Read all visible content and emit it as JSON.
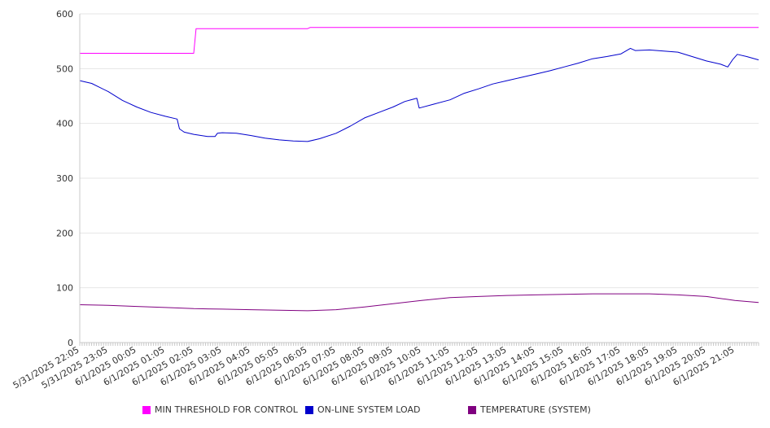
{
  "chart_data": {
    "type": "line",
    "title": "",
    "xlabel": "",
    "ylabel": "",
    "ylim": [
      0,
      600
    ],
    "yticks": [
      0,
      100,
      200,
      300,
      400,
      500,
      600
    ],
    "grid": true,
    "legend_position": "bottom",
    "x_start": "5/31/2025 22:05",
    "x_end": "6/1/2025 21:55",
    "x_tick_labels": [
      "5/31/2025 22:05",
      "5/31/2025 23:05",
      "6/1/2025 00:05",
      "6/1/2025 01:05",
      "6/1/2025 02:05",
      "6/1/2025 03:05",
      "6/1/2025 04:05",
      "6/1/2025 05:05",
      "6/1/2025 06:05",
      "6/1/2025 07:05",
      "6/1/2025 08:05",
      "6/1/2025 09:05",
      "6/1/2025 10:05",
      "6/1/2025 11:05",
      "6/1/2025 12:05",
      "6/1/2025 13:05",
      "6/1/2025 14:05",
      "6/1/2025 15:05",
      "6/1/2025 16:05",
      "6/1/2025 17:05",
      "6/1/2025 18:05",
      "6/1/2025 19:05",
      "6/1/2025 20:05",
      "6/1/2025 21:05"
    ],
    "series": [
      {
        "name": "MIN THRESHOLD FOR CONTROL",
        "color": "#ff00ff",
        "points": [
          [
            "5/31/2025 22:05",
            528
          ],
          [
            "6/1/2025 02:05",
            528
          ],
          [
            "6/1/2025 02:10",
            573
          ],
          [
            "6/1/2025 06:05",
            573
          ],
          [
            "6/1/2025 06:10",
            575
          ],
          [
            "6/1/2025 21:55",
            575
          ]
        ]
      },
      {
        "name": "ON-LINE SYSTEM LOAD",
        "color": "#0000cc",
        "points": [
          [
            "5/31/2025 22:05",
            478
          ],
          [
            "5/31/2025 22:30",
            473
          ],
          [
            "5/31/2025 23:05",
            458
          ],
          [
            "5/31/2025 23:35",
            442
          ],
          [
            "6/1/2025 00:05",
            430
          ],
          [
            "6/1/2025 00:35",
            420
          ],
          [
            "6/1/2025 01:05",
            413
          ],
          [
            "6/1/2025 01:30",
            408
          ],
          [
            "6/1/2025 01:35",
            390
          ],
          [
            "6/1/2025 01:45",
            384
          ],
          [
            "6/1/2025 02:05",
            380
          ],
          [
            "6/1/2025 02:35",
            376
          ],
          [
            "6/1/2025 02:50",
            376
          ],
          [
            "6/1/2025 02:55",
            382
          ],
          [
            "6/1/2025 03:05",
            383
          ],
          [
            "6/1/2025 03:35",
            382
          ],
          [
            "6/1/2025 04:05",
            378
          ],
          [
            "6/1/2025 04:35",
            373
          ],
          [
            "6/1/2025 05:05",
            370
          ],
          [
            "6/1/2025 05:35",
            368
          ],
          [
            "6/1/2025 06:05",
            367
          ],
          [
            "6/1/2025 06:30",
            372
          ],
          [
            "6/1/2025 07:05",
            382
          ],
          [
            "6/1/2025 07:35",
            395
          ],
          [
            "6/1/2025 08:05",
            410
          ],
          [
            "6/1/2025 08:35",
            420
          ],
          [
            "6/1/2025 09:05",
            430
          ],
          [
            "6/1/2025 09:30",
            440
          ],
          [
            "6/1/2025 09:55",
            446
          ],
          [
            "6/1/2025 10:00",
            428
          ],
          [
            "6/1/2025 10:30",
            435
          ],
          [
            "6/1/2025 11:05",
            443
          ],
          [
            "6/1/2025 11:35",
            455
          ],
          [
            "6/1/2025 12:05",
            463
          ],
          [
            "6/1/2025 12:35",
            472
          ],
          [
            "6/1/2025 13:05",
            478
          ],
          [
            "6/1/2025 13:35",
            484
          ],
          [
            "6/1/2025 14:05",
            490
          ],
          [
            "6/1/2025 14:35",
            496
          ],
          [
            "6/1/2025 15:05",
            503
          ],
          [
            "6/1/2025 15:35",
            510
          ],
          [
            "6/1/2025 16:05",
            518
          ],
          [
            "6/1/2025 16:35",
            522
          ],
          [
            "6/1/2025 17:05",
            527
          ],
          [
            "6/1/2025 17:25",
            537
          ],
          [
            "6/1/2025 17:35",
            533
          ],
          [
            "6/1/2025 18:05",
            534
          ],
          [
            "6/1/2025 18:35",
            532
          ],
          [
            "6/1/2025 19:05",
            530
          ],
          [
            "6/1/2025 19:35",
            522
          ],
          [
            "6/1/2025 20:05",
            514
          ],
          [
            "6/1/2025 20:35",
            508
          ],
          [
            "6/1/2025 20:50",
            503
          ],
          [
            "6/1/2025 21:00",
            516
          ],
          [
            "6/1/2025 21:10",
            526
          ],
          [
            "6/1/2025 21:30",
            522
          ],
          [
            "6/1/2025 21:55",
            516
          ]
        ]
      },
      {
        "name": "TEMPERATURE (SYSTEM)",
        "color": "#800080",
        "points": [
          [
            "5/31/2025 22:05",
            69
          ],
          [
            "5/31/2025 23:05",
            68
          ],
          [
            "6/1/2025 00:05",
            66
          ],
          [
            "6/1/2025 01:05",
            64
          ],
          [
            "6/1/2025 02:05",
            62
          ],
          [
            "6/1/2025 03:05",
            61
          ],
          [
            "6/1/2025 04:05",
            60
          ],
          [
            "6/1/2025 05:05",
            59
          ],
          [
            "6/1/2025 06:05",
            58
          ],
          [
            "6/1/2025 07:05",
            60
          ],
          [
            "6/1/2025 08:05",
            65
          ],
          [
            "6/1/2025 09:05",
            71
          ],
          [
            "6/1/2025 10:05",
            77
          ],
          [
            "6/1/2025 11:05",
            82
          ],
          [
            "6/1/2025 12:05",
            84
          ],
          [
            "6/1/2025 13:05",
            86
          ],
          [
            "6/1/2025 14:05",
            87
          ],
          [
            "6/1/2025 15:05",
            88
          ],
          [
            "6/1/2025 16:05",
            89
          ],
          [
            "6/1/2025 17:05",
            89
          ],
          [
            "6/1/2025 18:05",
            89
          ],
          [
            "6/1/2025 19:05",
            87
          ],
          [
            "6/1/2025 20:05",
            84
          ],
          [
            "6/1/2025 21:05",
            77
          ],
          [
            "6/1/2025 21:55",
            73
          ]
        ]
      }
    ]
  }
}
